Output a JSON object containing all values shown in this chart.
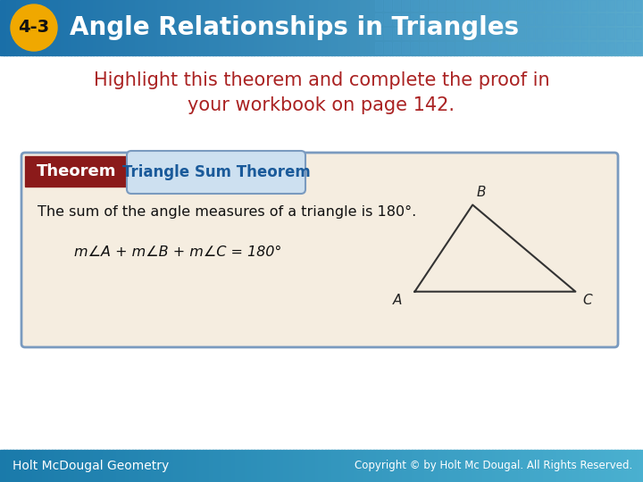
{
  "title": "Angle Relationships in Triangles",
  "lesson_num": "4-3",
  "header_bg_left": "#1a6fa8",
  "header_bg_right": "#5aabcc",
  "badge_color": "#f0a800",
  "body_bg_color": "#ffffff",
  "subtitle_text": "Highlight this theorem and complete the proof in\nyour workbook on page 142.",
  "subtitle_color": "#aa2222",
  "theorem_box_bg": "#f5ede0",
  "theorem_box_border": "#7a9abf",
  "theorem_label_bg": "#8b1a1a",
  "theorem_label_text": "Theorem",
  "theorem_title_bg": "#ddeeff",
  "theorem_title_text": "Triangle Sum Theorem",
  "theorem_title_color": "#1a5a9a",
  "theorem_body": "The sum of the angle measures of a triangle is 180°.",
  "theorem_formula": "m∠A + m∠B + m∠C = 180°",
  "footer_bg_left": "#1a7aaa",
  "footer_bg_right": "#4ab0d0",
  "footer_left": "Holt McDougal Geometry",
  "footer_right": "Copyright © by Holt Mc Dougal. All Rights Reserved.",
  "footer_text_color": "#ffffff",
  "triangle_A": [
    0.645,
    0.395
  ],
  "triangle_B": [
    0.735,
    0.575
  ],
  "triangle_C": [
    0.895,
    0.395
  ]
}
